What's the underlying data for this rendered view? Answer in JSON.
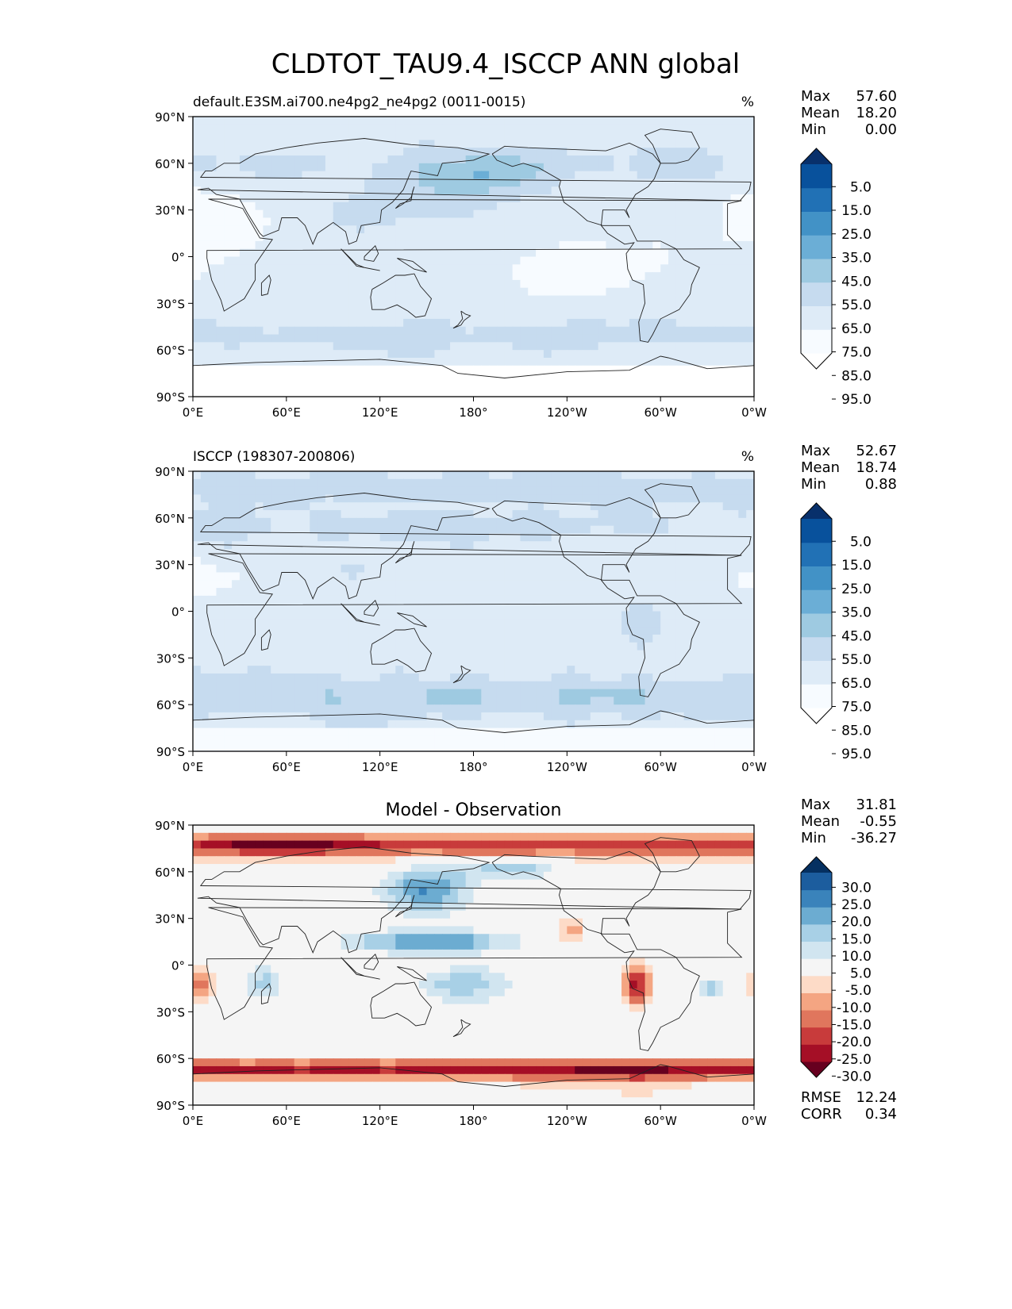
{
  "title": "CLDTOT_TAU9.4_ISCCP ANN global",
  "panels": [
    {
      "id": "test",
      "title_left": "default.E3SM.ai700.ne4pg2_ne4pg2 (0011-0015)",
      "title_center": "",
      "units": "%",
      "stats": [
        {
          "label": "Max",
          "value": "57.60"
        },
        {
          "label": "Mean",
          "value": "18.20"
        },
        {
          "label": "Min",
          "value": "0.00"
        }
      ],
      "colorbar": {
        "levels": [
          0,
          5,
          15,
          25,
          35,
          45,
          55,
          65,
          75,
          85,
          95,
          100
        ],
        "tick_labels": [
          "5.0",
          "15.0",
          "25.0",
          "35.0",
          "45.0",
          "55.0",
          "65.0",
          "75.0",
          "85.0",
          "95.0"
        ],
        "colors": [
          "#ffffff",
          "#f7fbff",
          "#deebf7",
          "#c6dbef",
          "#9ecae1",
          "#6baed6",
          "#4292c6",
          "#2171b5",
          "#08519c",
          "#08306b"
        ]
      }
    },
    {
      "id": "reference",
      "title_left": "ISCCP (198307-200806)",
      "title_center": "",
      "units": "%",
      "stats": [
        {
          "label": "Max",
          "value": "52.67"
        },
        {
          "label": "Mean",
          "value": "18.74"
        },
        {
          "label": "Min",
          "value": "0.88"
        }
      ],
      "colorbar": {
        "levels": [
          0,
          5,
          15,
          25,
          35,
          45,
          55,
          65,
          75,
          85,
          95,
          100
        ],
        "tick_labels": [
          "5.0",
          "15.0",
          "25.0",
          "35.0",
          "45.0",
          "55.0",
          "65.0",
          "75.0",
          "85.0",
          "95.0"
        ],
        "colors": [
          "#ffffff",
          "#f7fbff",
          "#deebf7",
          "#c6dbef",
          "#9ecae1",
          "#6baed6",
          "#4292c6",
          "#2171b5",
          "#08519c",
          "#08306b"
        ]
      }
    },
    {
      "id": "difference",
      "title_left": "",
      "title_center": "Model - Observation",
      "units": "",
      "stats": [
        {
          "label": "Max",
          "value": "31.81"
        },
        {
          "label": "Mean",
          "value": "-0.55"
        },
        {
          "label": "Min",
          "value": "-36.27"
        }
      ],
      "bottom_stats": [
        {
          "label": "RMSE",
          "value": "12.24"
        },
        {
          "label": "CORR",
          "value": "0.34"
        }
      ],
      "colorbar": {
        "levels": [
          -35,
          -30,
          -25,
          -20,
          -15,
          -10,
          -5,
          5,
          10,
          15,
          20,
          25,
          30,
          35
        ],
        "tick_labels": [
          "30.0",
          "25.0",
          "20.0",
          "15.0",
          "10.0",
          "5.0",
          "-5.0",
          "-10.0",
          "-15.0",
          "-20.0",
          "-25.0",
          "-30.0"
        ],
        "colors": [
          "#67001f",
          "#a50f26",
          "#c83b3b",
          "#e0765d",
          "#f4a582",
          "#fddbc7",
          "#f5f5f5",
          "#d1e5f0",
          "#a8d0e6",
          "#6cacd1",
          "#3a83bb",
          "#1c5d9e",
          "#053061"
        ]
      }
    }
  ],
  "axes": {
    "lat_ticks": [
      "90°N",
      "60°N",
      "30°N",
      "0°",
      "30°S",
      "60°S",
      "90°S"
    ],
    "lon_ticks": [
      "0°E",
      "60°E",
      "120°E",
      "180°",
      "120°W",
      "60°W",
      "0°W"
    ]
  },
  "chart_data": [
    {
      "type": "heatmap",
      "title": "default.E3SM.ai700.ne4pg2_ne4pg2 (0011-0015)",
      "variable": "CLDTOT_TAU9.4_ISCCP",
      "units": "%",
      "projection": "PlateCarree, central longitude 180",
      "xlim": [
        0,
        360
      ],
      "ylim": [
        -90,
        90
      ],
      "x_ticks": [
        "0°E",
        "60°E",
        "120°E",
        "180°",
        "120°W",
        "60°W",
        "0°W"
      ],
      "y_ticks": [
        "90°N",
        "60°N",
        "30°N",
        "0°",
        "30°S",
        "60°S",
        "90°S"
      ],
      "levels": [
        5,
        15,
        25,
        35,
        45,
        55,
        65,
        75,
        85,
        95
      ],
      "colorscale": "Blues",
      "max": 57.6,
      "mean": 18.2,
      "min": 0.0
    },
    {
      "type": "heatmap",
      "title": "ISCCP (198307-200806)",
      "variable": "CLDTOT_TAU9.4_ISCCP",
      "units": "%",
      "projection": "PlateCarree, central longitude 180",
      "xlim": [
        0,
        360
      ],
      "ylim": [
        -90,
        90
      ],
      "x_ticks": [
        "0°E",
        "60°E",
        "120°E",
        "180°",
        "120°W",
        "60°W",
        "0°W"
      ],
      "y_ticks": [
        "90°N",
        "60°N",
        "30°N",
        "0°",
        "30°S",
        "60°S",
        "90°S"
      ],
      "levels": [
        5,
        15,
        25,
        35,
        45,
        55,
        65,
        75,
        85,
        95
      ],
      "colorscale": "Blues",
      "max": 52.67,
      "mean": 18.74,
      "min": 0.88
    },
    {
      "type": "heatmap",
      "title": "Model - Observation",
      "variable": "CLDTOT_TAU9.4_ISCCP difference",
      "projection": "PlateCarree, central longitude 180",
      "xlim": [
        0,
        360
      ],
      "ylim": [
        -90,
        90
      ],
      "x_ticks": [
        "0°E",
        "60°E",
        "120°E",
        "180°",
        "120°W",
        "60°W",
        "0°W"
      ],
      "y_ticks": [
        "90°N",
        "60°N",
        "30°N",
        "0°",
        "30°S",
        "60°S",
        "90°S"
      ],
      "levels": [
        -30,
        -25,
        -20,
        -15,
        -10,
        -5,
        5,
        10,
        15,
        20,
        25,
        30
      ],
      "colorscale": "RdBu",
      "max": 31.81,
      "mean": -0.55,
      "min": -36.27,
      "rmse": 12.24,
      "corr": 0.34
    }
  ]
}
